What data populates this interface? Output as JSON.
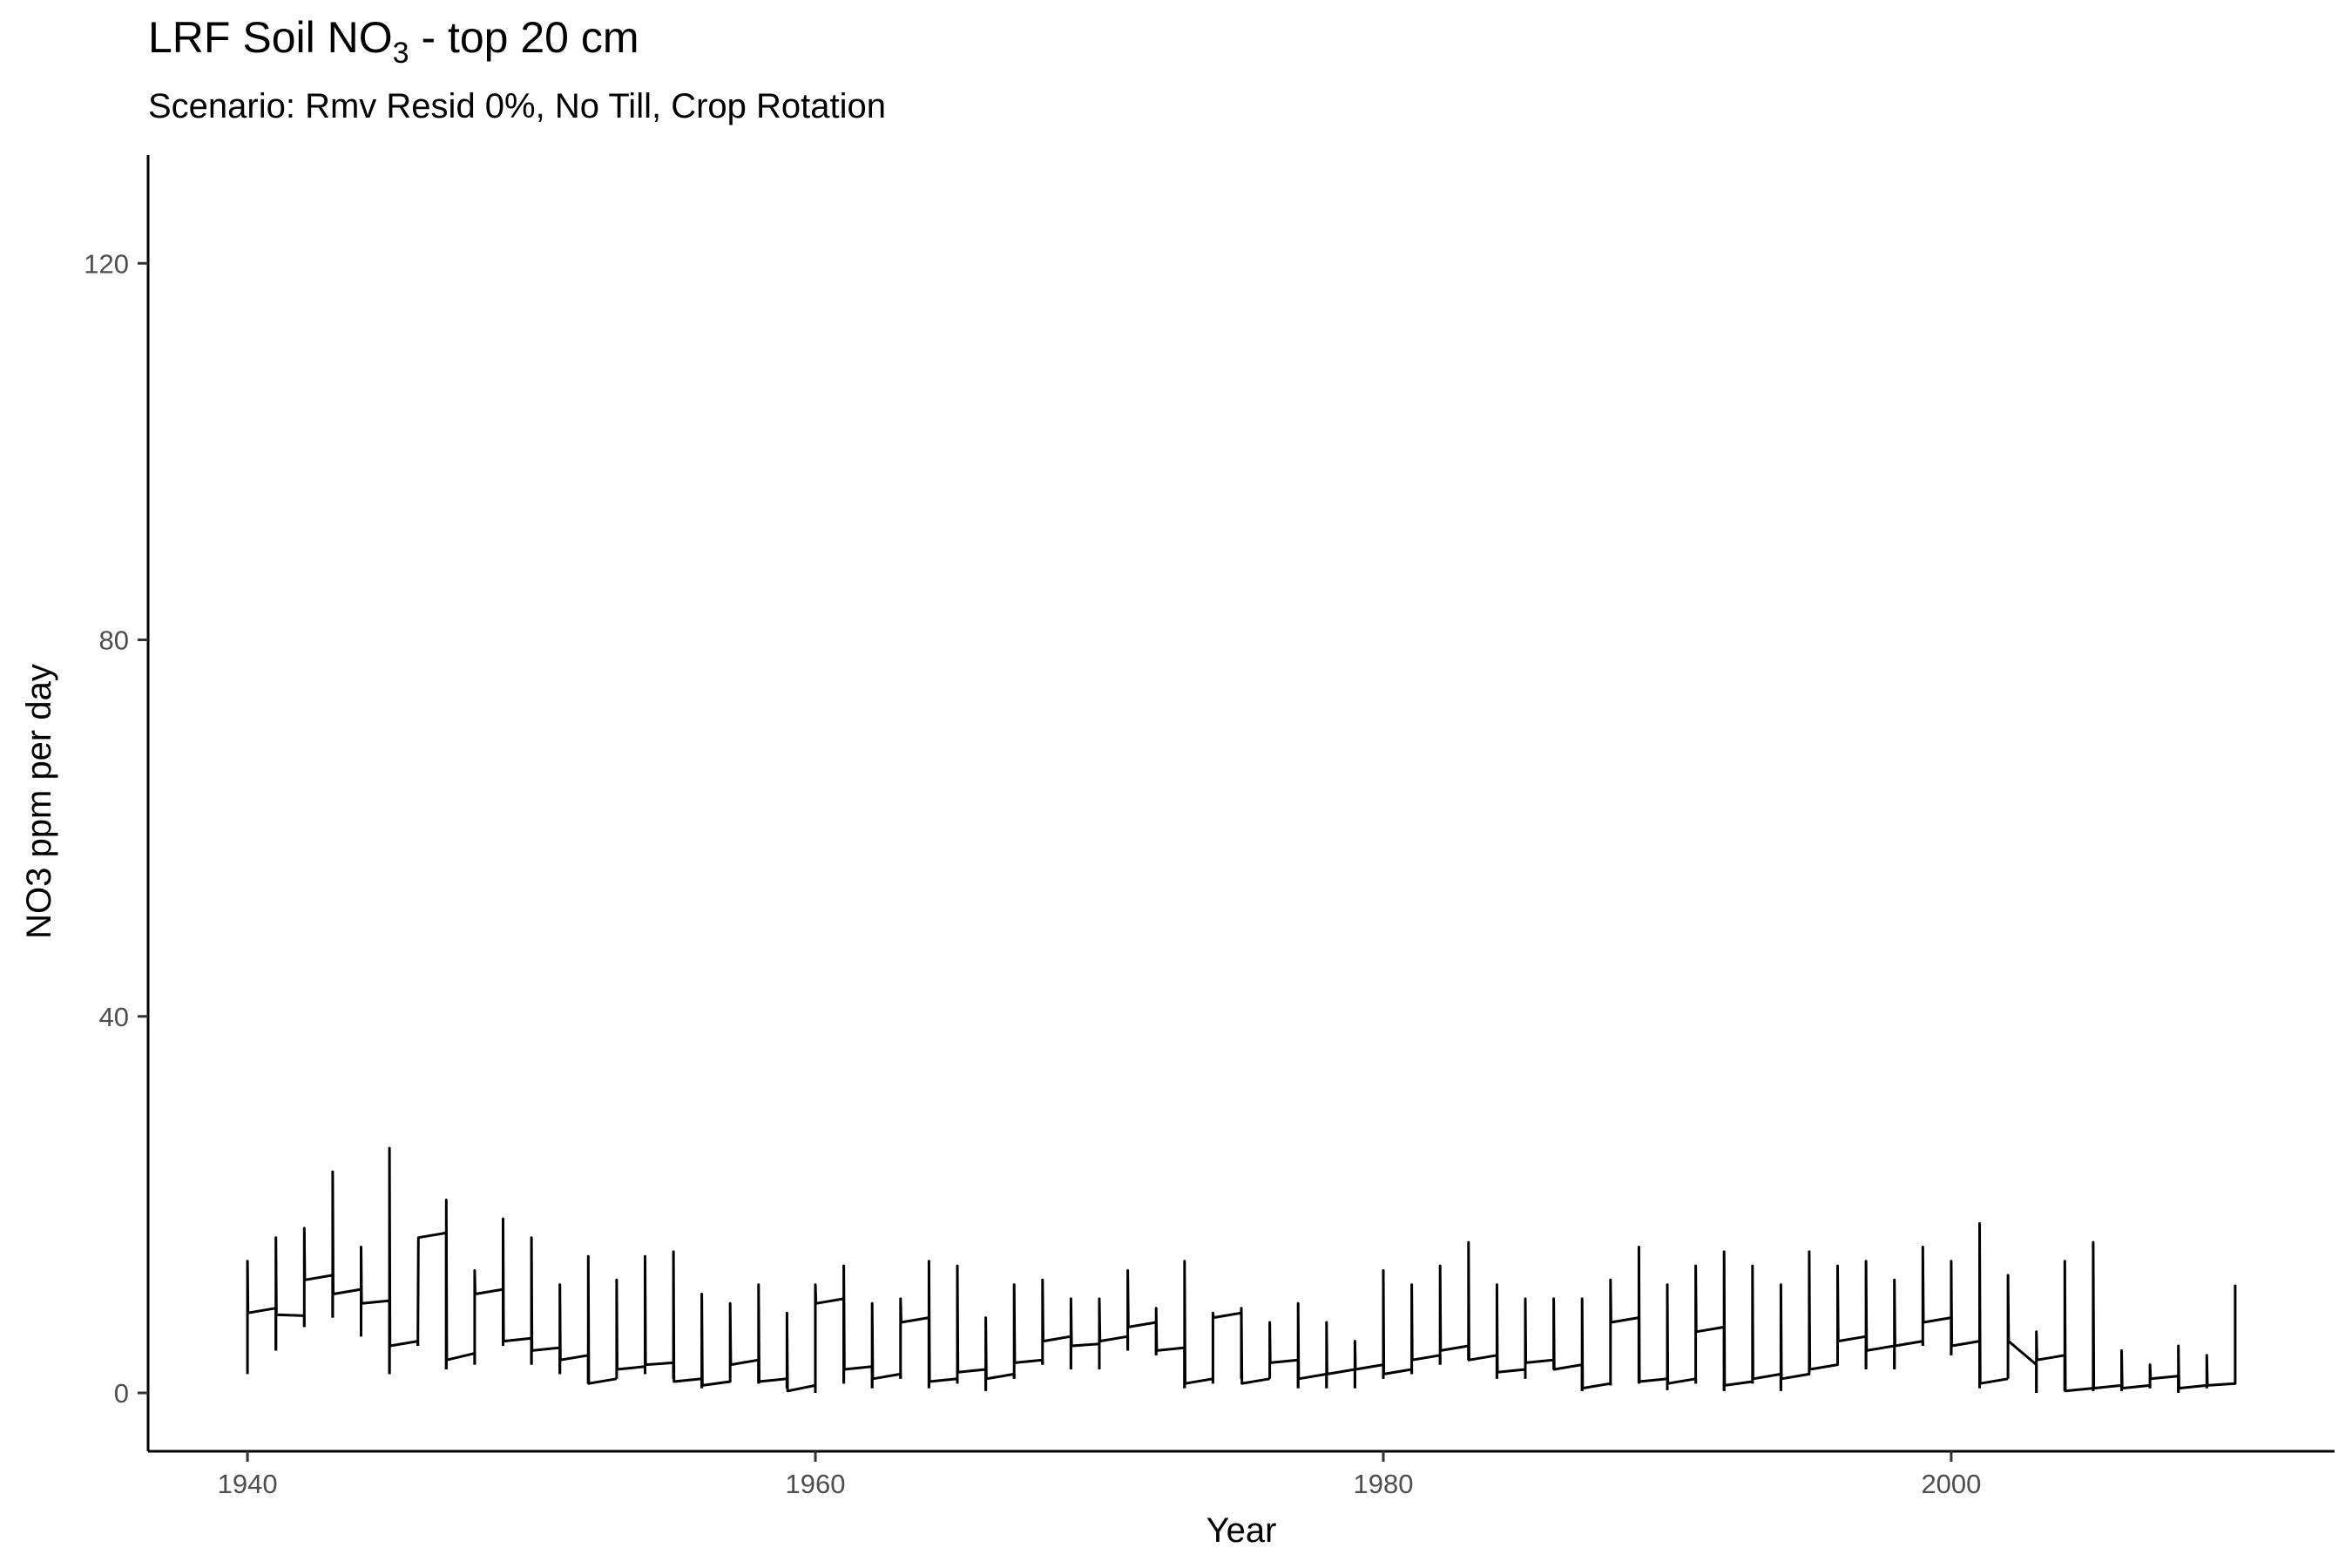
{
  "chart_data": {
    "type": "line",
    "title_main": "LRF Soil NO",
    "title_sub": "3",
    "title_rest": " - top 20 cm",
    "subtitle": "Scenario: Rmv Resid 0%, No Till, Crop Rotation",
    "xlabel": "Year",
    "ylabel": "NO3 ppm per day",
    "xlim": [
      1936.5,
      2013.5
    ],
    "ylim": [
      -6.2,
      131.5
    ],
    "x_ticks": [
      1940,
      1960,
      1980,
      2000
    ],
    "y_ticks": [
      0,
      40,
      80,
      120
    ],
    "grid": false,
    "legend": "none",
    "line_color": "#000000",
    "series": [
      {
        "years": [
          1940,
          1941,
          1942,
          1943,
          1944,
          1945,
          1946,
          1947,
          1948,
          1949,
          1950,
          1951,
          1952,
          1953,
          1954,
          1955,
          1956,
          1957,
          1958,
          1959,
          1960,
          1961,
          1962,
          1963,
          1964,
          1965,
          1966,
          1967,
          1968,
          1969,
          1970,
          1971,
          1972,
          1973,
          1974,
          1975,
          1976,
          1977,
          1978,
          1979,
          1980,
          1981,
          1982,
          1983,
          1984,
          1985,
          1986,
          1987,
          1988,
          1989,
          1990,
          1991,
          1992,
          1993,
          1994,
          1995,
          1996,
          1997,
          1998,
          1999,
          2000,
          2001,
          2002,
          2003,
          2004,
          2005,
          2006,
          2007,
          2008,
          2009
        ],
        "low": [
          2,
          4.5,
          7,
          8,
          6,
          2,
          5,
          2.5,
          3,
          5,
          3,
          2,
          1,
          1.5,
          2,
          1.5,
          0.5,
          1.5,
          1,
          0.5,
          0,
          1,
          0.5,
          1.5,
          0.5,
          1,
          0.2,
          1.5,
          3,
          2.5,
          2.5,
          4.5,
          4,
          0.5,
          1,
          1.5,
          1.5,
          0.5,
          0.5,
          0.5,
          1.5,
          2,
          3,
          3.5,
          1.5,
          1.5,
          2.5,
          0.2,
          0.8,
          1,
          0.3,
          1,
          0.2,
          1,
          0.2,
          2.5,
          4.5,
          2.5,
          2.5,
          5,
          4,
          0.5,
          1.5,
          0,
          0.2,
          0.2,
          0.2,
          0.5,
          0,
          0.5
        ],
        "peak": [
          14,
          16.5,
          17.5,
          23.5,
          15.5,
          26,
          5.5,
          20.5,
          13,
          18.5,
          16.5,
          11.5,
          14.5,
          12,
          14.5,
          15,
          10.5,
          9.5,
          11.5,
          8.5,
          11.5,
          13.5,
          9.5,
          10,
          14,
          13.5,
          8,
          11.5,
          12,
          10,
          10,
          13,
          9,
          14,
          8.5,
          9,
          7.5,
          9.5,
          7.5,
          5.5,
          13,
          11.5,
          13.5,
          16,
          11.5,
          10,
          10,
          10,
          12,
          15.5,
          11.5,
          13.5,
          15,
          13.5,
          11.5,
          15,
          13.5,
          14,
          12,
          15.5,
          14,
          18,
          12.5,
          6.5,
          14,
          16,
          4.5,
          3,
          5,
          4
        ],
        "start": [
          8.5,
          8.3,
          12,
          10.5,
          9.5,
          5,
          16.5,
          3.5,
          10.5,
          5.5,
          4.5,
          3.5,
          1,
          2.5,
          3,
          1.2,
          0.8,
          3,
          1.2,
          0.2,
          9.5,
          2.5,
          1.5,
          7.5,
          1.2,
          2.2,
          1.5,
          3.2,
          5.5,
          5,
          5.5,
          7,
          4.5,
          1,
          8,
          1,
          3.2,
          1.5,
          2,
          2.5,
          2,
          3.5,
          4.5,
          3.5,
          2.2,
          3.2,
          2.5,
          0.5,
          7.5,
          1.2,
          1,
          6.5,
          0.8,
          1.5,
          1.5,
          2.5,
          5.5,
          4.5,
          5,
          7.5,
          5,
          1,
          5.5,
          3.5,
          0.2,
          0.5,
          0.5,
          1.5,
          0.5,
          0.8
        ],
        "end": [
          9,
          8.2,
          12.5,
          11,
          9.8,
          5.5,
          17,
          4.2,
          11,
          5.8,
          4.8,
          4,
          1.5,
          2.8,
          3.2,
          1.5,
          1.2,
          3.5,
          1.5,
          0.8,
          10,
          2.8,
          2,
          8,
          1.5,
          2.5,
          2,
          3.5,
          6,
          5.2,
          6,
          7.5,
          4.8,
          1.5,
          8.5,
          1.5,
          3.5,
          2,
          2.5,
          3,
          2.5,
          4,
          5,
          4,
          2.5,
          3.5,
          3,
          1,
          8,
          1.5,
          1.5,
          7,
          1.2,
          2,
          2,
          3,
          6,
          5,
          5.5,
          8,
          5.5,
          1.5,
          3,
          4,
          0.5,
          0.8,
          0.8,
          1.8,
          0.8,
          1
        ]
      }
    ],
    "final_point": [
      2010,
      11.5
    ]
  }
}
